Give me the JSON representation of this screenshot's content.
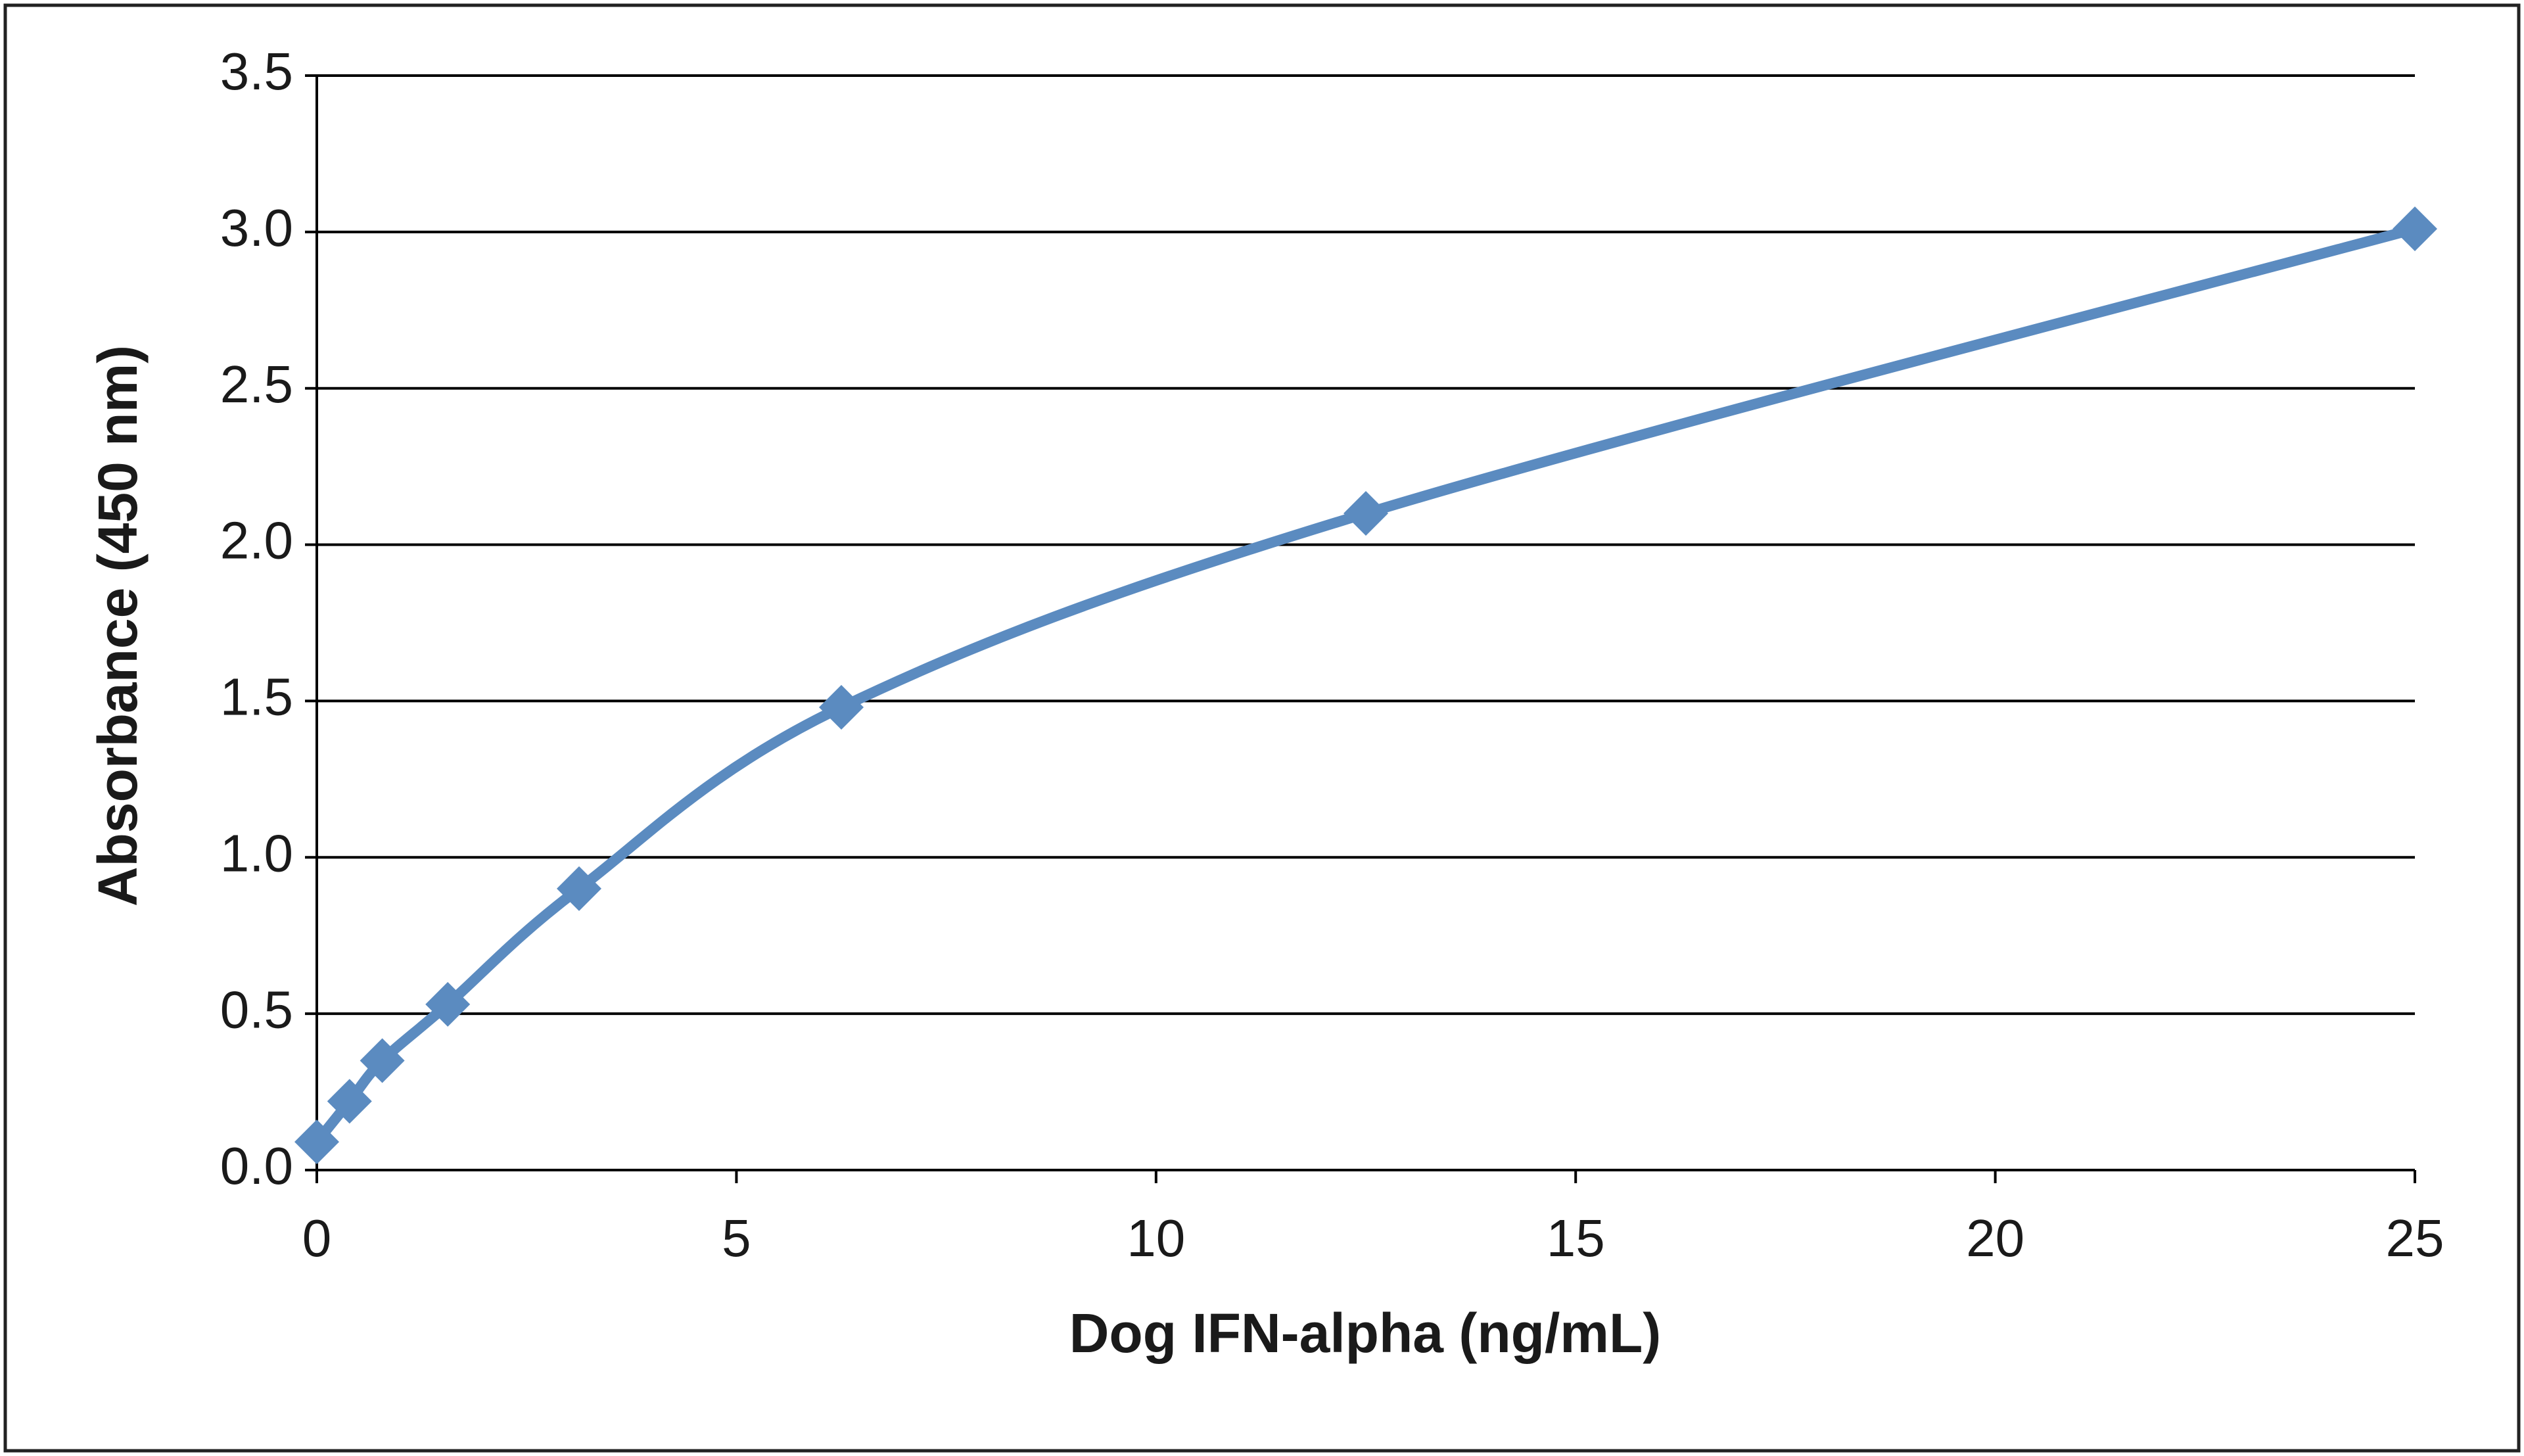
{
  "chart_data": {
    "type": "line",
    "xlabel": "Dog IFN-alpha (ng/mL)",
    "ylabel": "Absorbance  (450  nm)",
    "x": [
      0,
      0.39,
      0.78,
      1.56,
      3.125,
      6.25,
      12.5,
      25
    ],
    "values": [
      0.09,
      0.22,
      0.35,
      0.53,
      0.9,
      1.48,
      2.1,
      3.01
    ],
    "color": "#5b8bc0",
    "smooth": true,
    "xlim": [
      0,
      25
    ],
    "xticks": [
      0,
      5,
      10,
      15,
      20,
      25
    ],
    "ylim": [
      0,
      3.5
    ],
    "yticks": [
      {
        "value": 0,
        "label": "0.0"
      },
      0.5,
      {
        "value": 1,
        "label": "1.0"
      },
      1.5,
      {
        "value": 2,
        "label": "2.0"
      },
      2.5,
      {
        "value": 3,
        "label": "3.0"
      },
      3.5
    ],
    "grid": true
  }
}
